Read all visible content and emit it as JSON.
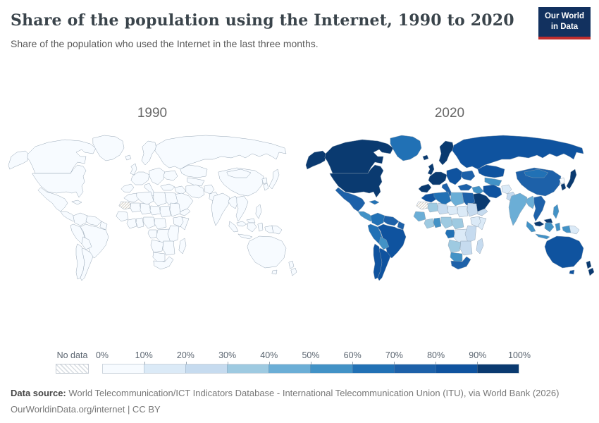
{
  "header": {
    "title": "Share of the population using the Internet, 1990 to 2020",
    "subtitle": "Share of the population who used the Internet in the last three months.",
    "logo": {
      "line1": "Our World",
      "line2": "in Data",
      "bg_color": "#12315f",
      "accent_color": "#bf2e2e"
    }
  },
  "chart_data": {
    "type": "choropleth",
    "title": "Share of the population using the Internet, 1990 to 2020",
    "unit": "%",
    "years": [
      "1990",
      "2020"
    ],
    "legend": {
      "no_data_label": "No data",
      "tick_labels": [
        "0%",
        "10%",
        "20%",
        "30%",
        "40%",
        "50%",
        "60%",
        "70%",
        "80%",
        "90%",
        "100%"
      ],
      "bin_colors": [
        "#f7fbff",
        "#dbeaf7",
        "#c6dbef",
        "#9ecae1",
        "#6baed6",
        "#4292c6",
        "#2171b5",
        "#1d61a9",
        "#0f539f",
        "#0a3a70"
      ],
      "bin_ranges": [
        "0-10%",
        "10-20%",
        "20-30%",
        "30-40%",
        "40-50%",
        "50-60%",
        "60-70%",
        "70-80%",
        "80-90%",
        "90-100%"
      ]
    },
    "regions": [
      {
        "id": "alaska",
        "name": "United States (Alaska)",
        "values": {
          "1990": 0,
          "2020": 91
        }
      },
      {
        "id": "canada",
        "name": "Canada",
        "values": {
          "1990": 0,
          "2020": 97
        }
      },
      {
        "id": "usa",
        "name": "United States",
        "values": {
          "1990": 0,
          "2020": 91
        }
      },
      {
        "id": "greenland",
        "name": "Greenland",
        "values": {
          "1990": 0,
          "2020": 67
        }
      },
      {
        "id": "mexico",
        "name": "Mexico",
        "values": {
          "1990": 0,
          "2020": 72
        }
      },
      {
        "id": "central-america",
        "name": "Central America",
        "values": {
          "1990": 0,
          "2020": 55
        }
      },
      {
        "id": "cuba",
        "name": "Cuba",
        "values": {
          "1990": 0,
          "2020": 64
        }
      },
      {
        "id": "colombia",
        "name": "Colombia",
        "values": {
          "1990": 0,
          "2020": 69
        }
      },
      {
        "id": "venezuela",
        "name": "Venezuela",
        "values": {
          "1990": 0,
          "2020": 72
        }
      },
      {
        "id": "guyanas",
        "name": "Guyanas",
        "values": {
          "1990": 0,
          "2020": 78
        }
      },
      {
        "id": "brazil",
        "name": "Brazil",
        "values": {
          "1990": 0,
          "2020": 81
        }
      },
      {
        "id": "peru",
        "name": "Peru",
        "values": {
          "1990": 0,
          "2020": 65
        }
      },
      {
        "id": "bolivia",
        "name": "Bolivia",
        "values": {
          "1990": 0,
          "2020": 55
        }
      },
      {
        "id": "chile",
        "name": "Chile",
        "values": {
          "1990": 0,
          "2020": 88
        }
      },
      {
        "id": "argentina",
        "name": "Argentina",
        "values": {
          "1990": 0,
          "2020": 86
        }
      },
      {
        "id": "iceland",
        "name": "Iceland",
        "values": {
          "1990": 0,
          "2020": 98
        }
      },
      {
        "id": "uk",
        "name": "United Kingdom",
        "values": {
          "1990": 0,
          "2020": 95
        }
      },
      {
        "id": "scandinavia",
        "name": "Scandinavia",
        "values": {
          "1990": 0,
          "2020": 97
        }
      },
      {
        "id": "west-europe",
        "name": "Western Europe",
        "values": {
          "1990": 0,
          "2020": 91
        }
      },
      {
        "id": "iberia",
        "name": "Spain & Portugal",
        "values": {
          "1990": 0,
          "2020": 93
        }
      },
      {
        "id": "italy",
        "name": "Italy",
        "values": {
          "1990": 0,
          "2020": 75
        }
      },
      {
        "id": "east-europe",
        "name": "Eastern Europe",
        "values": {
          "1990": 0,
          "2020": 85
        }
      },
      {
        "id": "ukraine",
        "name": "Ukraine",
        "values": {
          "1990": 0,
          "2020": 75
        }
      },
      {
        "id": "russia",
        "name": "Russia",
        "values": {
          "1990": 0,
          "2020": 85
        }
      },
      {
        "id": "kazakhstan",
        "name": "Kazakhstan",
        "values": {
          "1990": 0,
          "2020": 86
        }
      },
      {
        "id": "central-asia",
        "name": "Central Asia",
        "values": {
          "1990": 0,
          "2020": 55
        }
      },
      {
        "id": "turkey",
        "name": "Turkey",
        "values": {
          "1990": 0,
          "2020": 78
        }
      },
      {
        "id": "levant-iraq",
        "name": "Levant & Iraq",
        "values": {
          "1990": 0,
          "2020": 57
        }
      },
      {
        "id": "saudi",
        "name": "Saudi Arabia",
        "values": {
          "1990": 0,
          "2020": 96
        }
      },
      {
        "id": "yemen",
        "name": "Yemen",
        "values": {
          "1990": 0,
          "2020": 27
        }
      },
      {
        "id": "iran",
        "name": "Iran",
        "values": {
          "1990": 0,
          "2020": 84
        }
      },
      {
        "id": "afghanistan",
        "name": "Afghanistan",
        "values": {
          "1990": 0,
          "2020": 18
        }
      },
      {
        "id": "pakistan",
        "name": "Pakistan",
        "values": {
          "1990": 0,
          "2020": 25
        }
      },
      {
        "id": "india",
        "name": "India",
        "values": {
          "1990": 0,
          "2020": 43
        }
      },
      {
        "id": "china",
        "name": "China",
        "values": {
          "1990": 0,
          "2020": 70
        }
      },
      {
        "id": "mongolia",
        "name": "Mongolia",
        "values": {
          "1990": 0,
          "2020": 63
        }
      },
      {
        "id": "myanmar",
        "name": "Myanmar",
        "values": {
          "1990": 0,
          "2020": 44
        }
      },
      {
        "id": "thailand-vietnam",
        "name": "Thailand & Vietnam",
        "values": {
          "1990": 0,
          "2020": 74
        }
      },
      {
        "id": "malaysia",
        "name": "Malaysia",
        "values": {
          "1990": 0,
          "2020": 90
        }
      },
      {
        "id": "indonesia",
        "name": "Indonesia",
        "values": {
          "1990": 0,
          "2020": 54
        }
      },
      {
        "id": "philippines",
        "name": "Philippines",
        "values": {
          "1990": 0,
          "2020": 50
        }
      },
      {
        "id": "japan",
        "name": "Japan",
        "values": {
          "1990": 0,
          "2020": 90
        }
      },
      {
        "id": "south-korea",
        "name": "South Korea",
        "values": {
          "1990": 0,
          "2020": 97
        }
      },
      {
        "id": "north-korea",
        "name": "North Korea",
        "values": {
          "1990": 0,
          "2020": 0
        }
      },
      {
        "id": "indonesia-papua",
        "name": "Indonesia (Papua)",
        "values": {
          "1990": 0,
          "2020": 54
        }
      },
      {
        "id": "new-guinea",
        "name": "Papua New Guinea",
        "values": {
          "1990": 0,
          "2020": 15
        }
      },
      {
        "id": "australia",
        "name": "Australia",
        "values": {
          "1990": 0,
          "2020": 87
        }
      },
      {
        "id": "new-zealand",
        "name": "New Zealand",
        "values": {
          "1990": 0,
          "2020": 91
        }
      },
      {
        "id": "morocco",
        "name": "Morocco",
        "values": {
          "1990": 0,
          "2020": 84
        }
      },
      {
        "id": "algeria",
        "name": "Algeria",
        "values": {
          "1990": 0,
          "2020": 63
        }
      },
      {
        "id": "libya",
        "name": "Libya",
        "values": {
          "1990": 0,
          "2020": 46
        }
      },
      {
        "id": "egypt",
        "name": "Egypt",
        "values": {
          "1990": 0,
          "2020": 72
        }
      },
      {
        "id": "western-sahara",
        "name": "Western Sahara",
        "values": {
          "1990": null,
          "2020": null
        }
      },
      {
        "id": "mauritania",
        "name": "Mauritania",
        "values": {
          "1990": 0,
          "2020": 32
        }
      },
      {
        "id": "mali",
        "name": "Mali",
        "values": {
          "1990": 0,
          "2020": 27
        }
      },
      {
        "id": "niger",
        "name": "Niger",
        "values": {
          "1990": 0,
          "2020": 10
        }
      },
      {
        "id": "chad",
        "name": "Chad",
        "values": {
          "1990": 0,
          "2020": 10
        }
      },
      {
        "id": "sudan",
        "name": "Sudan",
        "values": {
          "1990": 0,
          "2020": 28
        }
      },
      {
        "id": "senegal-guinea",
        "name": "Senegal & Guinea",
        "values": {
          "1990": 0,
          "2020": 43
        }
      },
      {
        "id": "ivory-coast",
        "name": "Côte d'Ivoire",
        "values": {
          "1990": 0,
          "2020": 36
        }
      },
      {
        "id": "ghana",
        "name": "Ghana",
        "values": {
          "1990": 0,
          "2020": 58
        }
      },
      {
        "id": "nigeria",
        "name": "Nigeria",
        "values": {
          "1990": 0,
          "2020": 36
        }
      },
      {
        "id": "cameroon",
        "name": "Cameroon & CAR",
        "values": {
          "1990": 0,
          "2020": 38
        }
      },
      {
        "id": "ethiopia",
        "name": "Ethiopia",
        "values": {
          "1990": 0,
          "2020": 17
        }
      },
      {
        "id": "somalia",
        "name": "Somalia",
        "values": {
          "1990": 0,
          "2020": 12
        }
      },
      {
        "id": "gabon-congo",
        "name": "Gabon & Congo",
        "values": {
          "1990": 0,
          "2020": 62
        }
      },
      {
        "id": "drc",
        "name": "Democratic Republic of Congo",
        "values": {
          "1990": 0,
          "2020": 14
        }
      },
      {
        "id": "kenya-tanzania",
        "name": "Kenya & Tanzania",
        "values": {
          "1990": 0,
          "2020": 25
        }
      },
      {
        "id": "angola",
        "name": "Angola",
        "values": {
          "1990": 0,
          "2020": 36
        }
      },
      {
        "id": "zambia-zimbabwe-moz",
        "name": "Zambia, Zimbabwe & Mozambique",
        "values": {
          "1990": 0,
          "2020": 25
        }
      },
      {
        "id": "namibia-botswana",
        "name": "Namibia & Botswana",
        "values": {
          "1990": 0,
          "2020": 55
        }
      },
      {
        "id": "south-africa",
        "name": "South Africa",
        "values": {
          "1990": 0,
          "2020": 70
        }
      },
      {
        "id": "madagascar",
        "name": "Madagascar",
        "values": {
          "1990": 0,
          "2020": 20
        }
      }
    ]
  },
  "footer": {
    "source_label": "Data source:",
    "source_text": " World Telecommunication/ICT Indicators Database - International Telecommunication Union (ITU), via World Bank (2026)",
    "license_line": "OurWorldinData.org/internet | CC BY"
  }
}
